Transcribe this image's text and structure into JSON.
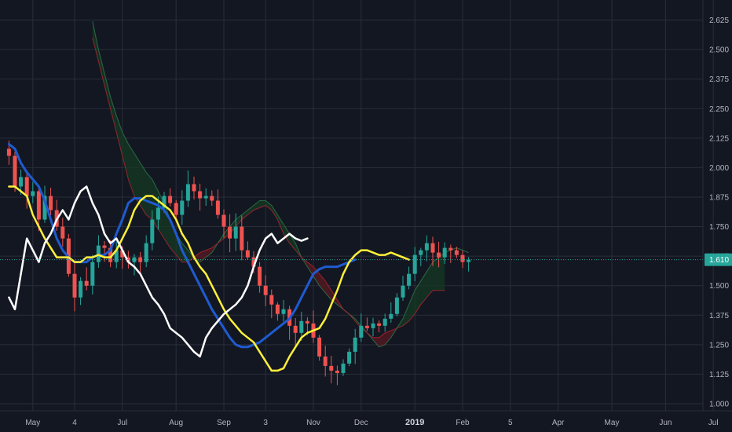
{
  "chart_data": {
    "type": "line",
    "title": "",
    "subtitle": "",
    "xlabel": "",
    "ylabel": "",
    "y_axis_position": "right",
    "ylim": [
      0.97,
      2.71
    ],
    "grid": true,
    "colors": {
      "background": "#131722",
      "grid": "#2a2e39",
      "bull": "#26a69a",
      "bear": "#ef5350",
      "conversion_line": "#fff03a",
      "base_line": "#1f5bcf",
      "lagging_span": "#ffffff",
      "cloud_bear": "#5a1a22",
      "cloud_bull": "#163a24",
      "current_price": "#26a69a"
    },
    "x_ticks": [
      {
        "label": "May",
        "idx": 4
      },
      {
        "label": "4",
        "idx": 11
      },
      {
        "label": "Jul",
        "idx": 19
      },
      {
        "label": "Aug",
        "idx": 28
      },
      {
        "label": "Sep",
        "idx": 36
      },
      {
        "label": "3",
        "idx": 43
      },
      {
        "label": "Nov",
        "idx": 51
      },
      {
        "label": "Dec",
        "idx": 59
      },
      {
        "label": "2019",
        "idx": 68,
        "bold": true
      },
      {
        "label": "Feb",
        "idx": 76
      },
      {
        "label": "5",
        "idx": 84
      },
      {
        "label": "Apr",
        "idx": 92
      },
      {
        "label": "May",
        "idx": 101
      },
      {
        "label": "Jun",
        "idx": 110
      },
      {
        "label": "Jul",
        "idx": 118
      }
    ],
    "y_ticks": [
      1.0,
      1.125,
      1.25,
      1.375,
      1.5,
      1.625,
      1.75,
      1.875,
      2.0,
      2.125,
      2.25,
      2.375,
      2.5,
      2.625
    ],
    "current_price": 1.61,
    "candle_closes": [
      2.05,
      1.92,
      1.96,
      1.88,
      1.9,
      1.78,
      1.88,
      1.82,
      1.75,
      1.7,
      1.55,
      1.45,
      1.52,
      1.5,
      1.6,
      1.67,
      1.66,
      1.6,
      1.65,
      1.62,
      1.6,
      1.62,
      1.6,
      1.68,
      1.78,
      1.83,
      1.88,
      1.85,
      1.8,
      1.86,
      1.93,
      1.9,
      1.87,
      1.88,
      1.86,
      1.8,
      1.75,
      1.7,
      1.75,
      1.65,
      1.62,
      1.58,
      1.5,
      1.46,
      1.42,
      1.38,
      1.4,
      1.33,
      1.3,
      1.35,
      1.34,
      1.28,
      1.2,
      1.16,
      1.14,
      1.13,
      1.17,
      1.22,
      1.28,
      1.33,
      1.32,
      1.34,
      1.33,
      1.36,
      1.38,
      1.45,
      1.5,
      1.55,
      1.63,
      1.65,
      1.68,
      1.64,
      1.62,
      1.66,
      1.65,
      1.63,
      1.6,
      1.61
    ],
    "series": [
      {
        "key": "conversion_line",
        "values": [
          1.92,
          1.92,
          1.9,
          1.88,
          1.8,
          1.75,
          1.7,
          1.66,
          1.62,
          1.62,
          1.62,
          1.6,
          1.6,
          1.62,
          1.62,
          1.63,
          1.62,
          1.62,
          1.65,
          1.7,
          1.75,
          1.82,
          1.86,
          1.88,
          1.88,
          1.86,
          1.84,
          1.82,
          1.78,
          1.72,
          1.68,
          1.62,
          1.58,
          1.55,
          1.5,
          1.45,
          1.4,
          1.36,
          1.33,
          1.3,
          1.28,
          1.26,
          1.22,
          1.18,
          1.14,
          1.14,
          1.15,
          1.2,
          1.24,
          1.28,
          1.3,
          1.31,
          1.32,
          1.36,
          1.42,
          1.48,
          1.55,
          1.6,
          1.63,
          1.65,
          1.65,
          1.64,
          1.63,
          1.63,
          1.64,
          1.63,
          1.62,
          1.61
        ]
      },
      {
        "key": "base_line",
        "values": [
          2.1,
          2.08,
          2.02,
          1.98,
          1.95,
          1.92,
          1.86,
          1.78,
          1.7,
          1.65,
          1.62,
          1.6,
          1.6,
          1.6,
          1.62,
          1.63,
          1.63,
          1.65,
          1.72,
          1.78,
          1.85,
          1.87,
          1.87,
          1.86,
          1.85,
          1.84,
          1.82,
          1.78,
          1.72,
          1.65,
          1.6,
          1.55,
          1.5,
          1.45,
          1.4,
          1.36,
          1.32,
          1.28,
          1.25,
          1.24,
          1.24,
          1.25,
          1.26,
          1.28,
          1.3,
          1.32,
          1.34,
          1.36,
          1.4,
          1.45,
          1.5,
          1.55,
          1.57,
          1.58,
          1.58,
          1.58,
          1.59,
          1.6,
          1.61
        ]
      },
      {
        "key": "lagging_span",
        "values": [
          1.45,
          1.4,
          1.55,
          1.7,
          1.65,
          1.6,
          1.68,
          1.72,
          1.78,
          1.82,
          1.78,
          1.85,
          1.9,
          1.92,
          1.85,
          1.8,
          1.72,
          1.68,
          1.7,
          1.65,
          1.6,
          1.58,
          1.55,
          1.5,
          1.45,
          1.42,
          1.38,
          1.32,
          1.3,
          1.28,
          1.25,
          1.22,
          1.2,
          1.28,
          1.32,
          1.35,
          1.38,
          1.4,
          1.42,
          1.45,
          1.5,
          1.58,
          1.65,
          1.7,
          1.72,
          1.68,
          1.7,
          1.72,
          1.7,
          1.69,
          1.7
        ]
      },
      {
        "key": "senkou_a",
        "values": [
          2.62,
          2.5,
          2.4,
          2.3,
          2.22,
          2.15,
          2.1,
          2.06,
          2.02,
          1.98,
          1.95,
          1.9,
          1.85,
          1.78,
          1.72,
          1.68,
          1.65,
          1.62,
          1.6,
          1.62,
          1.64,
          1.68,
          1.72,
          1.75,
          1.78,
          1.8,
          1.82,
          1.84,
          1.86,
          1.86,
          1.84,
          1.8,
          1.76,
          1.72,
          1.68,
          1.62,
          1.58,
          1.54,
          1.5,
          1.47,
          1.44,
          1.42,
          1.4,
          1.38,
          1.36,
          1.33,
          1.3,
          1.27,
          1.24,
          1.25,
          1.28,
          1.32,
          1.36,
          1.42,
          1.48,
          1.52,
          1.56,
          1.6,
          1.62,
          1.64,
          1.65,
          1.66,
          1.65,
          1.64
        ]
      },
      {
        "key": "senkou_b",
        "values": [
          2.55,
          2.45,
          2.35,
          2.25,
          2.15,
          2.05,
          1.95,
          1.88,
          1.84,
          1.8,
          1.78,
          1.74,
          1.7,
          1.66,
          1.63,
          1.6,
          1.6,
          1.62,
          1.64,
          1.65,
          1.66,
          1.68,
          1.7,
          1.72,
          1.75,
          1.78,
          1.8,
          1.82,
          1.83,
          1.84,
          1.82,
          1.78,
          1.72,
          1.68,
          1.65,
          1.62,
          1.6,
          1.58,
          1.55,
          1.52,
          1.48,
          1.44,
          1.4,
          1.38,
          1.35,
          1.32,
          1.3,
          1.28,
          1.28,
          1.3,
          1.31,
          1.32,
          1.33,
          1.35,
          1.38,
          1.42,
          1.45,
          1.48,
          1.48,
          1.48
        ]
      }
    ]
  }
}
